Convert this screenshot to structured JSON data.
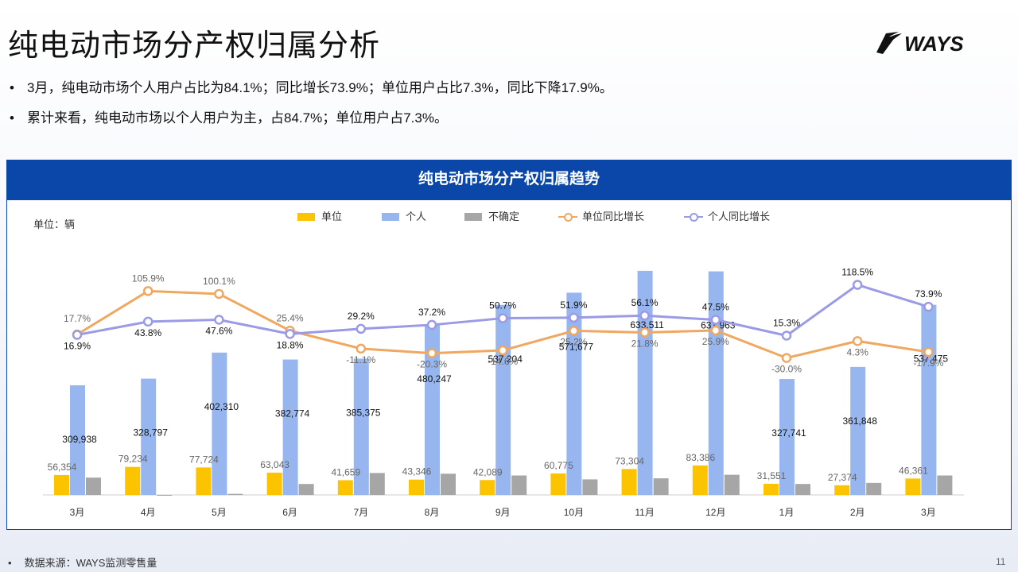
{
  "header": {
    "title": "纯电动市场分产权归属分析",
    "logo_text": "WAYS"
  },
  "bullets": [
    "3月，纯电动市场个人用户占比为84.1%；同比增长73.9%；单位用户占比7.3%，同比下降17.9%。",
    "累计来看，纯电动市场以个人用户为主，占84.7%；单位用户占7.3%。"
  ],
  "footer": {
    "source": "数据来源：WAYS监测零售量",
    "page": "11"
  },
  "colors": {
    "unit_bar": "#fbc300",
    "personal_bar": "#97b6ef",
    "unknown_bar": "#a6a6a6",
    "unit_yoy": "#f0a760",
    "personal_yoy": "#9b9ae6",
    "header_blue": "#0a47a9"
  },
  "chart_data": {
    "type": "bar",
    "title": "纯电动市场分产权归属趋势",
    "unit_label": "单位：辆",
    "categories": [
      "3月",
      "4月",
      "5月",
      "6月",
      "7月",
      "8月",
      "9月",
      "10月",
      "11月",
      "12月",
      "1月",
      "2月",
      "3月"
    ],
    "series": [
      {
        "name": "单位",
        "kind": "bar",
        "values": [
          56354,
          79234,
          77724,
          63043,
          41659,
          43346,
          42089,
          60775,
          73304,
          83386,
          31551,
          27374,
          46361
        ],
        "labels": [
          "56,354",
          "79,234",
          "77,724",
          "63,043",
          "41,659",
          "43,346",
          "42,089",
          "60,775",
          "73,304",
          "83,386",
          "31,551",
          "27,374",
          "46,361"
        ]
      },
      {
        "name": "个人",
        "kind": "bar",
        "values": [
          309938,
          328797,
          402310,
          382774,
          385375,
          480247,
          537204,
          571677,
          633511,
          631963,
          327741,
          361848,
          537475
        ],
        "labels": [
          "309,938",
          "328,797",
          "402,310",
          "382,774",
          "385,375",
          "480,247",
          "537,204",
          "571,677",
          "633,511",
          "631,963",
          "327,741",
          "361,848",
          "537,475"
        ]
      },
      {
        "name": "不确定",
        "kind": "bar",
        "values": [
          49000,
          0,
          3000,
          31000,
          62000,
          60000,
          55000,
          44000,
          47000,
          57000,
          31000,
          34000,
          55000
        ]
      },
      {
        "name": "单位同比增长",
        "kind": "line",
        "values": [
          17.7,
          105.9,
          100.1,
          25.4,
          -11.1,
          -20.3,
          -14.6,
          25.2,
          21.8,
          25.9,
          -30.0,
          4.3,
          -17.9
        ],
        "labels": [
          "17.7%",
          "105.9%",
          "100.1%",
          "25.4%",
          "-11.1%",
          "-20.3%",
          "-14.6%",
          "25.2%",
          "21.8%",
          "25.9%",
          "-30.0%",
          "4.3%",
          "-17.9%"
        ]
      },
      {
        "name": "个人同比增长",
        "kind": "line",
        "values": [
          16.9,
          43.8,
          47.6,
          18.8,
          29.2,
          37.2,
          50.7,
          51.9,
          56.1,
          47.5,
          15.3,
          118.5,
          73.9
        ],
        "labels": [
          "16.9%",
          "43.8%",
          "47.6%",
          "18.8%",
          "29.2%",
          "37.2%",
          "50.7%",
          "51.9%",
          "56.1%",
          "47.5%",
          "15.3%",
          "118.5%",
          "73.9%"
        ]
      }
    ],
    "y_left_range": [
      0,
      640000
    ],
    "y_right_range": [
      -100,
      150
    ],
    "axes_visible": false,
    "grid": false,
    "legend_position": "top"
  }
}
